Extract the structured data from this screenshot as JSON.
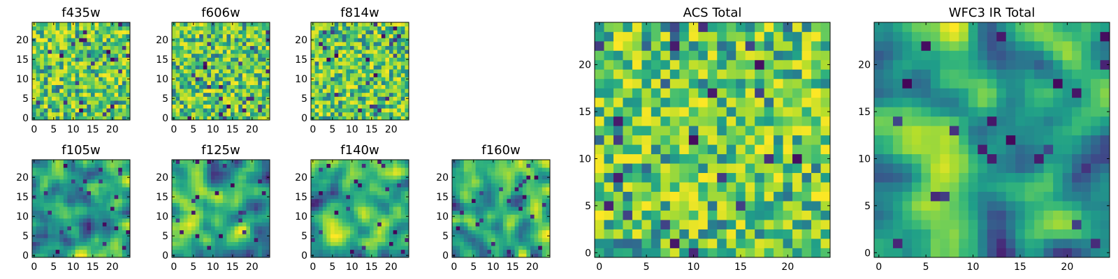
{
  "chart_data": [
    {
      "type": "heatmap",
      "title": "f435w",
      "colormap": "viridis",
      "xlim": [
        0,
        24
      ],
      "ylim": [
        0,
        24
      ],
      "xticks": [
        "0",
        "5",
        "10",
        "15",
        "20"
      ],
      "yticks": [
        "0",
        "5",
        "10",
        "15",
        "20"
      ],
      "grid": false,
      "pattern": "noise",
      "seed": 11
    },
    {
      "type": "heatmap",
      "title": "f606w",
      "colormap": "viridis",
      "xlim": [
        0,
        24
      ],
      "ylim": [
        0,
        24
      ],
      "xticks": [
        "0",
        "5",
        "10",
        "15",
        "20"
      ],
      "yticks": [
        "0",
        "5",
        "10",
        "15",
        "20"
      ],
      "grid": false,
      "pattern": "noise",
      "seed": 23
    },
    {
      "type": "heatmap",
      "title": "f814w",
      "colormap": "viridis",
      "xlim": [
        0,
        24
      ],
      "ylim": [
        0,
        24
      ],
      "xticks": [
        "0",
        "5",
        "10",
        "15",
        "20"
      ],
      "yticks": [
        "0",
        "5",
        "10",
        "15",
        "20"
      ],
      "grid": false,
      "pattern": "noise",
      "seed": 37
    },
    {
      "type": "heatmap",
      "title": "f105w",
      "colormap": "viridis",
      "xlim": [
        0,
        24
      ],
      "ylim": [
        0,
        24
      ],
      "xticks": [
        "0",
        "5",
        "10",
        "15",
        "20"
      ],
      "yticks": [
        "0",
        "5",
        "10",
        "15",
        "20"
      ],
      "grid": false,
      "pattern": "smooth",
      "seed": 41
    },
    {
      "type": "heatmap",
      "title": "f125w",
      "colormap": "viridis",
      "xlim": [
        0,
        24
      ],
      "ylim": [
        0,
        24
      ],
      "xticks": [
        "0",
        "5",
        "10",
        "15",
        "20"
      ],
      "yticks": [
        "0",
        "5",
        "10",
        "15",
        "20"
      ],
      "grid": false,
      "pattern": "smooth",
      "seed": 53
    },
    {
      "type": "heatmap",
      "title": "f140w",
      "colormap": "viridis",
      "xlim": [
        0,
        24
      ],
      "ylim": [
        0,
        24
      ],
      "xticks": [
        "0",
        "5",
        "10",
        "15",
        "20"
      ],
      "yticks": [
        "0",
        "5",
        "10",
        "15",
        "20"
      ],
      "grid": false,
      "pattern": "smooth",
      "seed": 67
    },
    {
      "type": "heatmap",
      "title": "f160w",
      "colormap": "viridis",
      "xlim": [
        0,
        24
      ],
      "ylim": [
        0,
        24
      ],
      "xticks": [
        "0",
        "5",
        "10",
        "15",
        "20"
      ],
      "yticks": [
        "0",
        "5",
        "10",
        "15",
        "20"
      ],
      "grid": false,
      "pattern": "smooth",
      "seed": 79
    },
    {
      "type": "heatmap",
      "title": "ACS Total",
      "colormap": "viridis",
      "xlim": [
        0,
        24
      ],
      "ylim": [
        0,
        24
      ],
      "xticks": [
        "0",
        "5",
        "10",
        "15",
        "20"
      ],
      "yticks": [
        "0",
        "5",
        "10",
        "15",
        "20"
      ],
      "grid": false,
      "pattern": "noise",
      "seed": 97
    },
    {
      "type": "heatmap",
      "title": "WFC3 IR Total",
      "colormap": "viridis",
      "xlim": [
        0,
        24
      ],
      "ylim": [
        0,
        24
      ],
      "xticks": [
        "0",
        "5",
        "10",
        "15",
        "20"
      ],
      "yticks": [
        "0",
        "5",
        "10",
        "15",
        "20"
      ],
      "grid": false,
      "pattern": "smooth",
      "seed": 101
    }
  ]
}
